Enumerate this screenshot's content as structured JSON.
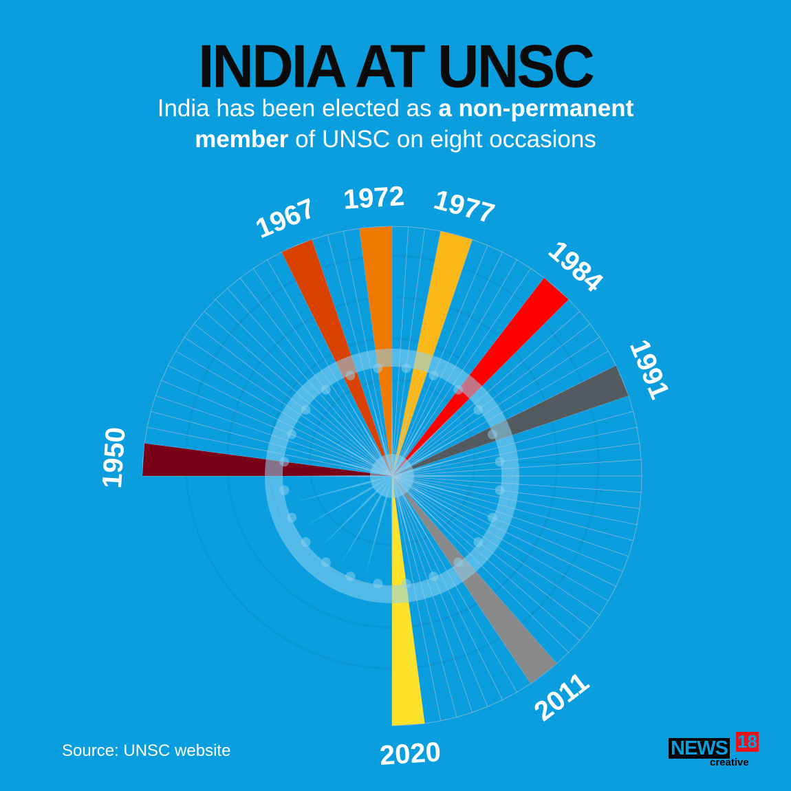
{
  "title": "INDIA AT UNSC",
  "subtitle": {
    "line1_plain": "India has been elected as ",
    "line1_bold": "a non-permanent",
    "line2_bold": "member",
    "line2_plain": " of UNSC on eight occasions"
  },
  "source": "Source: UNSC website",
  "logo": {
    "news": "NEWS",
    "number": "18",
    "tag": "creative"
  },
  "colors": {
    "background": "#0b9ede",
    "title": "#0a0a0a",
    "text": "#ffffff"
  },
  "chart_data": {
    "type": "radial-bar",
    "year_range": [
      1950,
      2021
    ],
    "term_length_years": 2,
    "terms": [
      {
        "year": 1950,
        "label": "1950",
        "color": "#7a0018"
      },
      {
        "year": 1967,
        "label": "1967",
        "color": "#d94100"
      },
      {
        "year": 1972,
        "label": "1972",
        "color": "#f07a00"
      },
      {
        "year": 1977,
        "label": "1977",
        "color": "#fbb819"
      },
      {
        "year": 1984,
        "label": "1984",
        "color": "#ff0000"
      },
      {
        "year": 1991,
        "label": "1991",
        "color": "#545b60"
      },
      {
        "year": 2011,
        "label": "2011",
        "color": "#8a8a8a"
      },
      {
        "year": 2020,
        "label": "2020",
        "color": "#fde22b"
      }
    ]
  }
}
